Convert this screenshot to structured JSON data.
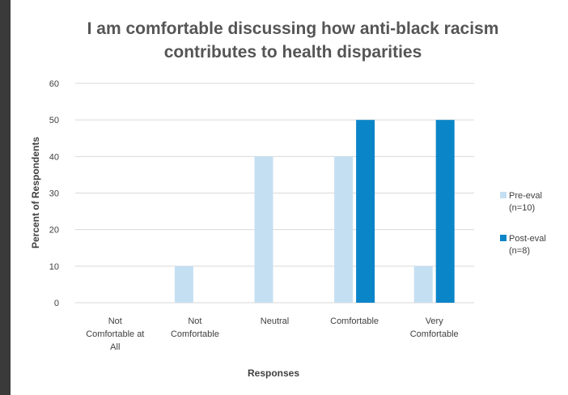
{
  "chart_data": {
    "type": "bar",
    "title": [
      "I am comfortable discussing how anti-black racism",
      "contributes to health disparities"
    ],
    "xlabel": "Responses",
    "ylabel": "Percent of Respondents",
    "ylim": [
      0,
      60
    ],
    "yticks": [
      0,
      10,
      20,
      30,
      40,
      50,
      60
    ],
    "categories": [
      [
        "Not",
        "Comfortable at",
        "All"
      ],
      [
        "Not",
        "Comfortable"
      ],
      [
        "Neutral"
      ],
      [
        "Comfortable"
      ],
      [
        "Very",
        "Comfortable"
      ]
    ],
    "series": [
      {
        "name": [
          "Pre-eval",
          "(n=10)"
        ],
        "color": "#c5dff2",
        "values": [
          0,
          10,
          40,
          40,
          10
        ]
      },
      {
        "name": [
          "Post-eval",
          "(n=8)"
        ],
        "color": "#0a85c8",
        "values": [
          0,
          0,
          0,
          50,
          50
        ]
      }
    ],
    "grid": true,
    "legend_position": "right"
  }
}
